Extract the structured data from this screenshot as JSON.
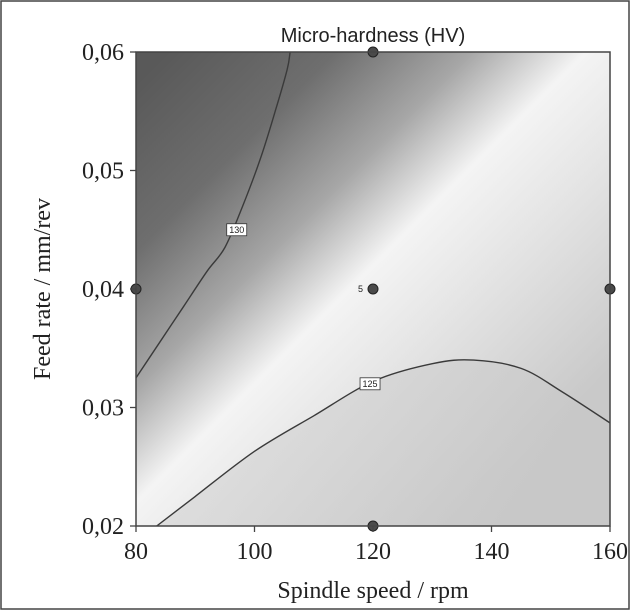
{
  "chart_data": {
    "type": "contour",
    "title": "Micro-hardness (HV)",
    "xlabel": "Spindle speed / rpm",
    "ylabel": "Feed rate / mm/rev",
    "xlim": [
      80,
      160
    ],
    "ylim": [
      0.02,
      0.06
    ],
    "x_ticks": [
      {
        "value": 80,
        "label": "80"
      },
      {
        "value": 100,
        "label": "100"
      },
      {
        "value": 120,
        "label": "120"
      },
      {
        "value": 140,
        "label": "140"
      },
      {
        "value": 160,
        "label": "160"
      }
    ],
    "y_ticks": [
      {
        "value": 0.02,
        "label": "0,02"
      },
      {
        "value": 0.03,
        "label": "0,03"
      },
      {
        "value": 0.04,
        "label": "0,04"
      },
      {
        "value": 0.05,
        "label": "0,05"
      },
      {
        "value": 0.06,
        "label": "0,06"
      }
    ],
    "contours": [
      {
        "level": 130,
        "label": "130",
        "label_at": {
          "x": 97,
          "y": 0.045
        },
        "points": [
          [
            80,
            0.0325
          ],
          [
            84,
            0.0355
          ],
          [
            88,
            0.0385
          ],
          [
            92,
            0.0415
          ],
          [
            95,
            0.0435
          ],
          [
            98,
            0.047
          ],
          [
            101,
            0.051
          ],
          [
            103.5,
            0.055
          ],
          [
            105.5,
            0.0585
          ],
          [
            106,
            0.06
          ]
        ]
      },
      {
        "level": 125,
        "label": "125",
        "label_at": {
          "x": 119.5,
          "y": 0.032
        },
        "points": [
          [
            83.5,
            0.02
          ],
          [
            90,
            0.0225
          ],
          [
            100,
            0.0263
          ],
          [
            110,
            0.0293
          ],
          [
            120,
            0.0322
          ],
          [
            130,
            0.0337
          ],
          [
            137,
            0.034
          ],
          [
            145,
            0.0333
          ],
          [
            152,
            0.0313
          ],
          [
            160,
            0.0287
          ]
        ]
      }
    ],
    "design_points": [
      {
        "x": 120,
        "y": 0.06
      },
      {
        "x": 80,
        "y": 0.04
      },
      {
        "x": 120,
        "y": 0.04,
        "label": "5"
      },
      {
        "x": 160,
        "y": 0.04
      },
      {
        "x": 120,
        "y": 0.02
      }
    ],
    "colors": {
      "dark": "#5e5e5e",
      "mid": "#9a9a9a",
      "light": "#f6f6f6",
      "low": "#d0d0d0",
      "line": "#3a3a3a",
      "point": "#4a4a4a",
      "frame": "#444444"
    }
  }
}
